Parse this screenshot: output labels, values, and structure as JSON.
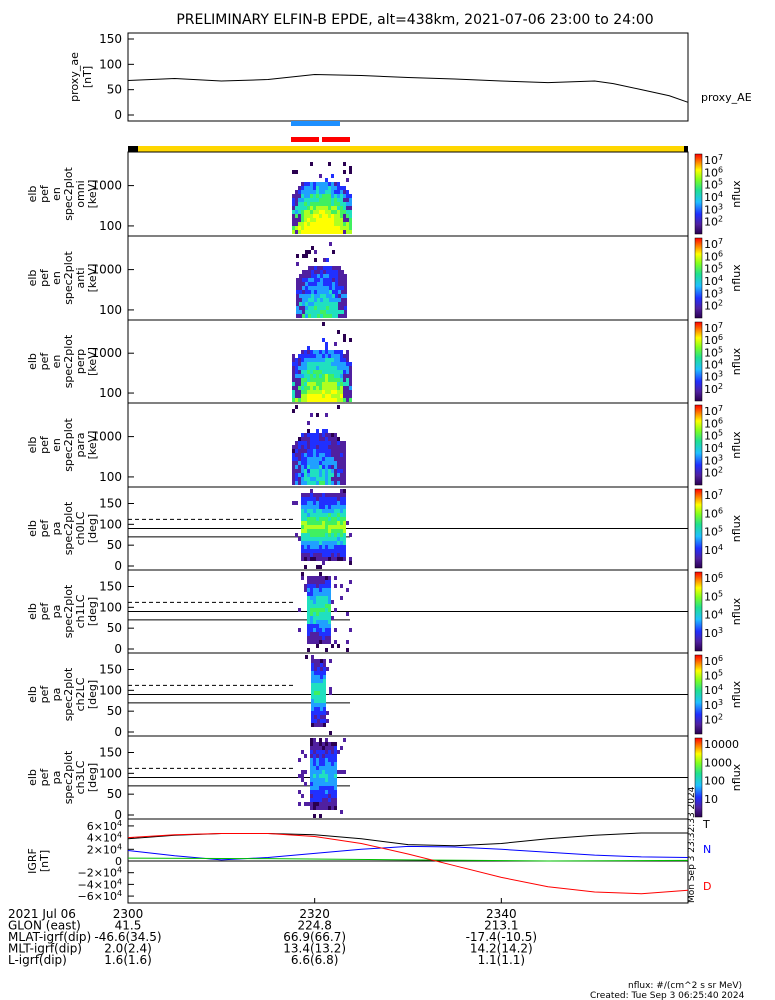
{
  "title": "PRELIMINARY ELFIN-B EPDE, alt=438km, 2021-07-06 23:00 to 24:00",
  "chart_data": [
    {
      "type": "line",
      "ylabel_lines": [
        "proxy_ae",
        "[nT]"
      ],
      "legend": "proxy_AE",
      "ylim": [
        0,
        150
      ],
      "yticks": [
        "150",
        "100",
        "50",
        "0"
      ],
      "series": [
        {
          "name": "proxy_AE",
          "x": [
            0,
            5,
            10,
            15,
            20,
            25,
            30,
            35,
            40,
            45,
            50,
            52,
            55,
            58,
            60
          ],
          "values": [
            68,
            72,
            67,
            70,
            80,
            78,
            74,
            71,
            67,
            64,
            67,
            62,
            50,
            38,
            25
          ]
        }
      ]
    },
    {
      "type": "heatmap",
      "ylabel_lines": [
        "elb",
        "pef",
        "en",
        "spec2plot",
        "omni",
        "[keV]"
      ],
      "yticks": [
        "1000",
        "100"
      ],
      "colorbar_ticks": [
        "10^7",
        "10^6",
        "10^5",
        "10^4",
        "10^3",
        "10^2"
      ],
      "colorbar_label": "nflux"
    },
    {
      "type": "heatmap",
      "ylabel_lines": [
        "elb",
        "pef",
        "en",
        "spec2plot",
        "anti",
        "[keV]"
      ],
      "yticks": [
        "1000",
        "100"
      ],
      "colorbar_ticks": [
        "10^7",
        "10^6",
        "10^5",
        "10^4",
        "10^3",
        "10^2"
      ],
      "colorbar_label": "nflux"
    },
    {
      "type": "heatmap",
      "ylabel_lines": [
        "elb",
        "pef",
        "en",
        "spec2plot",
        "perp",
        "[keV]"
      ],
      "yticks": [
        "1000",
        "100"
      ],
      "colorbar_ticks": [
        "10^7",
        "10^6",
        "10^5",
        "10^4",
        "10^3",
        "10^2"
      ],
      "colorbar_label": "nflux"
    },
    {
      "type": "heatmap",
      "ylabel_lines": [
        "elb",
        "pef",
        "en",
        "spec2plot",
        "para",
        "[keV]"
      ],
      "yticks": [
        "1000",
        "100"
      ],
      "colorbar_ticks": [
        "10^7",
        "10^6",
        "10^5",
        "10^4",
        "10^3",
        "10^2"
      ],
      "colorbar_label": "nflux"
    },
    {
      "type": "heatmap",
      "ylabel_lines": [
        "elb",
        "pef",
        "pa",
        "spec2plot",
        "ch0LC",
        "[deg]"
      ],
      "ylim": [
        0,
        180
      ],
      "yticks": [
        "150",
        "100",
        "50",
        "0"
      ],
      "colorbar_ticks": [
        "10^7",
        "10^6",
        "10^5",
        "10^4"
      ],
      "colorbar_label": "nflux"
    },
    {
      "type": "heatmap",
      "ylabel_lines": [
        "elb",
        "pef",
        "pa",
        "spec2plot",
        "ch1LC",
        "[deg]"
      ],
      "ylim": [
        0,
        180
      ],
      "yticks": [
        "150",
        "100",
        "50",
        "0"
      ],
      "colorbar_ticks": [
        "10^6",
        "10^5",
        "10^4",
        "10^3"
      ],
      "colorbar_label": "nflux"
    },
    {
      "type": "heatmap",
      "ylabel_lines": [
        "elb",
        "pef",
        "pa",
        "spec2plot",
        "ch2LC",
        "[deg]"
      ],
      "ylim": [
        0,
        180
      ],
      "yticks": [
        "150",
        "100",
        "50",
        "0"
      ],
      "colorbar_ticks": [
        "10^6",
        "10^5",
        "10^4",
        "10^3",
        "10^2"
      ],
      "colorbar_label": "nflux"
    },
    {
      "type": "heatmap",
      "ylabel_lines": [
        "elb",
        "pef",
        "pa",
        "spec2plot",
        "ch3LC",
        "[deg]"
      ],
      "ylim": [
        0,
        180
      ],
      "yticks": [
        "150",
        "100",
        "50",
        "0"
      ],
      "colorbar_ticks": [
        "10000",
        "1000",
        "100",
        "10"
      ],
      "colorbar_label": "nflux"
    },
    {
      "type": "line",
      "ylabel_lines": [
        "IGRF",
        "[nT]"
      ],
      "ylim": [
        -65000,
        65000
      ],
      "yticks": [
        "6×10^4",
        "4×10^4",
        "2×10^4",
        "0",
        "−2×10^4",
        "−4×10^4",
        "−6×10^4"
      ],
      "series": [
        {
          "name": "T",
          "color": "#000000",
          "x": [
            0,
            5,
            10,
            15,
            20,
            25,
            30,
            35,
            40,
            45,
            50,
            55,
            60
          ],
          "values": [
            38000,
            44000,
            47000,
            47000,
            45000,
            38000,
            28000,
            26000,
            30000,
            38000,
            44000,
            48000,
            48000
          ]
        },
        {
          "name": "N",
          "color": "#0000ff",
          "x": [
            0,
            5,
            10,
            15,
            20,
            25,
            30,
            35,
            40,
            45,
            50,
            55,
            60
          ],
          "values": [
            18000,
            9000,
            2000,
            6000,
            13000,
            20000,
            25000,
            24000,
            20000,
            15000,
            10000,
            7000,
            6000
          ]
        },
        {
          "name": "E",
          "color": "#00c000",
          "x": [
            0,
            15,
            30,
            45,
            60
          ],
          "values": [
            5000,
            4000,
            2000,
            0,
            1000
          ]
        },
        {
          "name": "D",
          "color": "#ff0000",
          "x": [
            0,
            5,
            10,
            15,
            20,
            25,
            30,
            35,
            40,
            45,
            50,
            55,
            60
          ],
          "values": [
            40000,
            45000,
            47000,
            47000,
            42000,
            30000,
            12000,
            -8000,
            -28000,
            -44000,
            -53000,
            -56000,
            -50000
          ]
        }
      ],
      "side_labels": [
        "T",
        "N",
        "D"
      ],
      "side_stamp": "Mon Sep  3 23:32:33 2024"
    }
  ],
  "xaxis": {
    "ticks": [
      "2300",
      "2320",
      "2340"
    ],
    "rows": [
      {
        "label": "2021 Jul 06",
        "values": [
          "2300",
          "2320",
          "2340"
        ]
      },
      {
        "label": "GLON (east)",
        "values": [
          "41.5",
          "224.8",
          "213.1"
        ]
      },
      {
        "label": "MLAT-igrf(dip)",
        "values": [
          "-46.6(34.5)",
          "66.9(66.7)",
          "-17.4(-10.5)"
        ]
      },
      {
        "label": "MLT-igrf(dip)",
        "values": [
          "2.0(2.4)",
          "13.4(13.2)",
          "14.2(14.2)"
        ]
      },
      {
        "label": "L-igrf(dip)",
        "values": [
          "1.6(1.6)",
          "6.6(6.8)",
          "1.1(1.1)"
        ]
      }
    ]
  },
  "footer": {
    "units": "nflux: #/(cm^2 s sr MeV)",
    "created": "Created: Tue Sep  3 06:25:40 2024"
  }
}
